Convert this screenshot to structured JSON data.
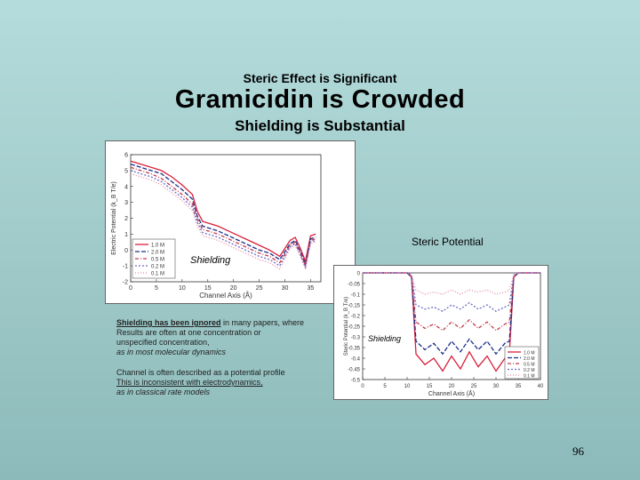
{
  "slide": {
    "subtitle_top": "Steric Effect is Significant",
    "title": "Gramicidin is Crowded",
    "subtitle_bottom": "Shielding is Substantial",
    "page_number": "96"
  },
  "labels": {
    "steric": "Steric Potential",
    "shielding_1": "Shielding",
    "shielding_2": "Shielding"
  },
  "notes": {
    "p1_bold": "Shielding has been ignored",
    "p1_rest": " in many papers, where",
    "p1_l2": "Results are often at one concentration or",
    "p1_l3": "unspecified concentration,",
    "p1_l4": "as in most molecular dynamics",
    "p2_l1": "Channel is often described as a potential profile",
    "p2_l2": "This is inconsistent with electrodynamics,",
    "p2_l3": "as in classical rate models"
  },
  "chart_data": [
    {
      "type": "line",
      "xlabel": "Channel Axis (Å)",
      "ylabel": "Electric Potential (k_B T/e)",
      "xlim": [
        0,
        37
      ],
      "ylim": [
        -2,
        6
      ],
      "xticks": [
        0,
        5,
        10,
        15,
        20,
        25,
        30,
        35
      ],
      "yticks": [
        -2,
        -1,
        0,
        1,
        2,
        3,
        4,
        5,
        6
      ],
      "legend": [
        "1.0 M",
        "2.0 M",
        "0.5 M",
        "0.2 M",
        "0.1 M"
      ],
      "legend_position": "bottom-left",
      "x": [
        0,
        2,
        4,
        6,
        8,
        10,
        12,
        13,
        14,
        15,
        17,
        19,
        21,
        23,
        25,
        27,
        29,
        31,
        32,
        33,
        34,
        35,
        36
      ],
      "series": [
        {
          "name": "1.0 M",
          "color": "#d81f3a",
          "dash": "",
          "values": [
            5.6,
            5.4,
            5.2,
            5.0,
            4.6,
            4.1,
            3.5,
            2.4,
            1.8,
            1.7,
            1.5,
            1.2,
            0.9,
            0.6,
            0.3,
            0.0,
            -0.4,
            0.6,
            0.8,
            0.1,
            -0.7,
            0.9,
            1.0
          ]
        },
        {
          "name": "2.0 M",
          "color": "#1a2e8a",
          "dash": "5,2",
          "values": [
            5.4,
            5.2,
            5.0,
            4.8,
            4.3,
            3.8,
            3.2,
            2.1,
            1.5,
            1.4,
            1.2,
            0.9,
            0.6,
            0.3,
            0.0,
            -0.2,
            -0.6,
            0.4,
            0.6,
            -0.1,
            -0.9,
            0.7,
            0.8
          ]
        },
        {
          "name": "0.5 M",
          "color": "#c23a4a",
          "dash": "4,2,1,2",
          "values": [
            5.2,
            5.0,
            4.8,
            4.5,
            4.0,
            3.5,
            2.9,
            1.9,
            1.3,
            1.2,
            1.0,
            0.7,
            0.4,
            0.1,
            -0.2,
            -0.4,
            -0.8,
            0.3,
            0.5,
            -0.2,
            -1.0,
            0.6,
            0.7
          ]
        },
        {
          "name": "0.2 M",
          "color": "#6a6ac8",
          "dash": "2,2",
          "values": [
            5.0,
            4.8,
            4.6,
            4.3,
            3.8,
            3.3,
            2.7,
            1.7,
            1.1,
            1.0,
            0.8,
            0.5,
            0.2,
            -0.1,
            -0.4,
            -0.6,
            -1.0,
            0.2,
            0.4,
            -0.3,
            -1.1,
            0.5,
            0.6
          ]
        },
        {
          "name": "0.1 M",
          "color": "#e08aa4",
          "dash": "1,2",
          "values": [
            4.8,
            4.6,
            4.4,
            4.1,
            3.6,
            3.1,
            2.5,
            1.5,
            0.9,
            0.8,
            0.6,
            0.3,
            0.0,
            -0.3,
            -0.6,
            -0.8,
            -1.2,
            0.1,
            0.3,
            -0.4,
            -1.2,
            0.4,
            0.5
          ]
        }
      ]
    },
    {
      "type": "line",
      "xlabel": "Channel Axis (Å)",
      "ylabel": "Steric Potential (k_B T/e)",
      "xlim": [
        0,
        40
      ],
      "ylim": [
        -0.5,
        0
      ],
      "xticks": [
        0,
        5,
        10,
        15,
        20,
        25,
        30,
        35,
        40
      ],
      "yticks": [
        0,
        -0.05,
        -0.1,
        -0.15,
        -0.2,
        -0.25,
        -0.3,
        -0.35,
        -0.4,
        -0.45,
        -0.5
      ],
      "legend": [
        "1.0 M",
        "2.0 M",
        "0.5 M",
        "0.2 M",
        "0.1 M"
      ],
      "legend_position": "bottom-right",
      "x": [
        0,
        5,
        10,
        11,
        12,
        14,
        16,
        18,
        20,
        22,
        24,
        26,
        28,
        30,
        32,
        33,
        34,
        35,
        40
      ],
      "series": [
        {
          "name": "1.0 M",
          "color": "#d81f3a",
          "dash": "",
          "values": [
            0,
            0,
            0,
            -0.02,
            -0.38,
            -0.43,
            -0.4,
            -0.46,
            -0.39,
            -0.45,
            -0.37,
            -0.44,
            -0.39,
            -0.46,
            -0.4,
            -0.38,
            -0.02,
            0,
            0
          ]
        },
        {
          "name": "2.0 M",
          "color": "#1a2e8a",
          "dash": "5,2",
          "values": [
            0,
            0,
            0,
            -0.02,
            -0.32,
            -0.36,
            -0.33,
            -0.38,
            -0.32,
            -0.37,
            -0.31,
            -0.36,
            -0.32,
            -0.38,
            -0.33,
            -0.32,
            -0.02,
            0,
            0
          ]
        },
        {
          "name": "0.5 M",
          "color": "#c23a4a",
          "dash": "4,2,1,2",
          "values": [
            0,
            0,
            0,
            -0.02,
            -0.23,
            -0.26,
            -0.24,
            -0.27,
            -0.23,
            -0.26,
            -0.22,
            -0.26,
            -0.23,
            -0.27,
            -0.24,
            -0.23,
            -0.02,
            0,
            0
          ]
        },
        {
          "name": "0.2 M",
          "color": "#6a6ac8",
          "dash": "2,2",
          "values": [
            0,
            0,
            0,
            -0.01,
            -0.15,
            -0.17,
            -0.16,
            -0.18,
            -0.15,
            -0.17,
            -0.14,
            -0.17,
            -0.15,
            -0.18,
            -0.16,
            -0.15,
            -0.01,
            0,
            0
          ]
        },
        {
          "name": "0.1 M",
          "color": "#e08aa4",
          "dash": "1,2",
          "values": [
            0,
            0,
            0,
            -0.01,
            -0.08,
            -0.1,
            -0.09,
            -0.1,
            -0.08,
            -0.1,
            -0.08,
            -0.09,
            -0.08,
            -0.1,
            -0.09,
            -0.08,
            -0.01,
            0,
            0
          ]
        }
      ]
    }
  ]
}
